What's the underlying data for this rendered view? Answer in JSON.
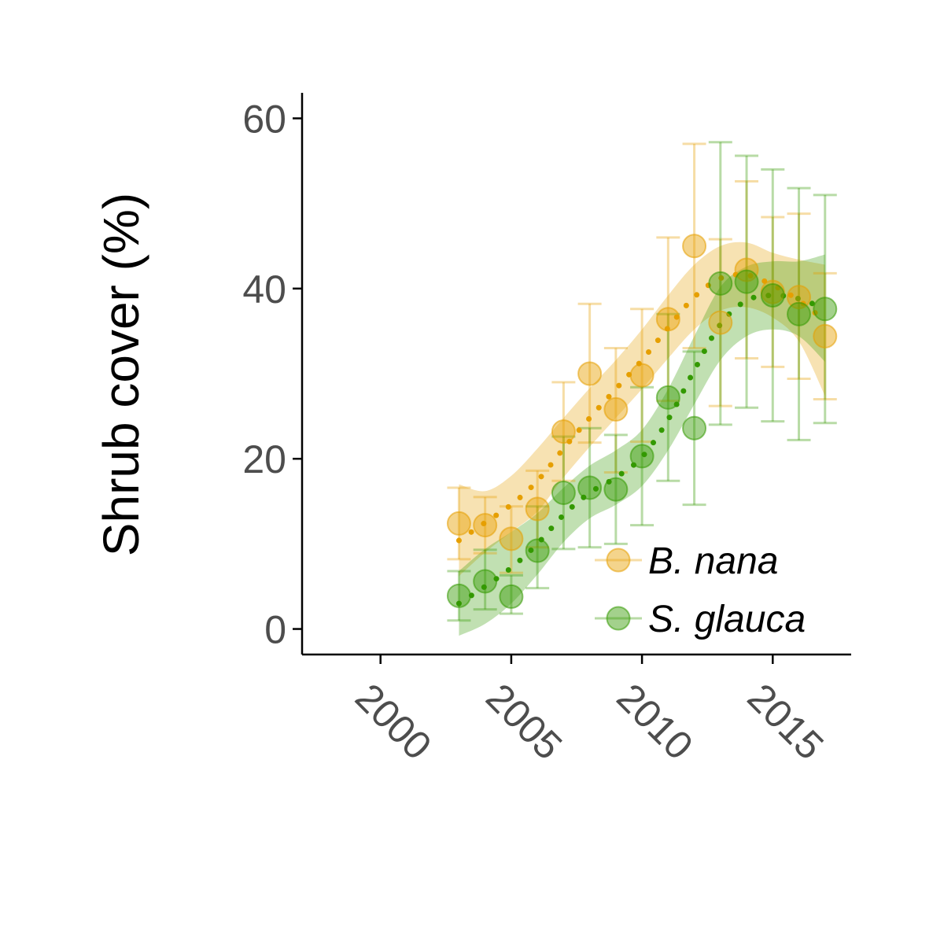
{
  "chart_data": {
    "type": "scatter",
    "title": "",
    "xlabel": "",
    "ylabel": "Shrub cover (%)",
    "xlim": [
      1997,
      2018
    ],
    "ylim": [
      -3,
      63
    ],
    "xticks": [
      2000,
      2005,
      2010,
      2015
    ],
    "yticks": [
      0,
      20,
      40,
      60
    ],
    "xtick_labels": [
      "2000",
      "2005",
      "2010",
      "2015"
    ],
    "ytick_labels": [
      "0",
      "20",
      "40",
      "60"
    ],
    "grid": false,
    "legend_position": "bottom-right",
    "series": [
      {
        "name": "B. nana",
        "color": "#E69F00",
        "points": [
          {
            "x": 2003,
            "y": 12.4,
            "lo": 8.2,
            "hi": 16.6
          },
          {
            "x": 2004,
            "y": 12.2,
            "lo": 8.9,
            "hi": 15.5
          },
          {
            "x": 2005,
            "y": 10.6,
            "lo": 6.6,
            "hi": 14.4
          },
          {
            "x": 2006,
            "y": 14.1,
            "lo": 9.6,
            "hi": 18.6
          },
          {
            "x": 2007,
            "y": 23.2,
            "lo": 17.4,
            "hi": 29.0
          },
          {
            "x": 2008,
            "y": 30.0,
            "lo": 21.9,
            "hi": 38.2
          },
          {
            "x": 2009,
            "y": 25.8,
            "lo": 18.4,
            "hi": 33.0
          },
          {
            "x": 2010,
            "y": 29.8,
            "lo": 22.0,
            "hi": 37.6
          },
          {
            "x": 2011,
            "y": 36.4,
            "lo": 26.8,
            "hi": 46.0
          },
          {
            "x": 2012,
            "y": 45.0,
            "lo": 33.0,
            "hi": 57.0
          },
          {
            "x": 2013,
            "y": 36.0,
            "lo": 26.2,
            "hi": 45.8
          },
          {
            "x": 2014,
            "y": 42.2,
            "lo": 31.8,
            "hi": 52.6
          },
          {
            "x": 2015,
            "y": 39.6,
            "lo": 30.8,
            "hi": 48.4
          },
          {
            "x": 2016,
            "y": 39.0,
            "lo": 29.4,
            "hi": 48.8
          },
          {
            "x": 2017,
            "y": 34.4,
            "lo": 27.0,
            "hi": 41.8
          }
        ],
        "trend": [
          {
            "x": 2003,
            "y": 10.4,
            "lo": 6.2,
            "hi": 17.0
          },
          {
            "x": 2004,
            "y": 12.5,
            "lo": 9.0,
            "hi": 16.2
          },
          {
            "x": 2005,
            "y": 14.6,
            "lo": 11.4,
            "hi": 18.0
          },
          {
            "x": 2006,
            "y": 17.4,
            "lo": 13.8,
            "hi": 21.2
          },
          {
            "x": 2007,
            "y": 21.2,
            "lo": 17.8,
            "hi": 24.8
          },
          {
            "x": 2008,
            "y": 24.8,
            "lo": 21.4,
            "hi": 28.3
          },
          {
            "x": 2009,
            "y": 28.2,
            "lo": 24.8,
            "hi": 31.6
          },
          {
            "x": 2010,
            "y": 31.6,
            "lo": 28.2,
            "hi": 35.2
          },
          {
            "x": 2011,
            "y": 35.4,
            "lo": 31.8,
            "hi": 39.2
          },
          {
            "x": 2012,
            "y": 39.0,
            "lo": 35.2,
            "hi": 42.8
          },
          {
            "x": 2013,
            "y": 41.2,
            "lo": 37.4,
            "hi": 45.0
          },
          {
            "x": 2014,
            "y": 41.6,
            "lo": 37.8,
            "hi": 45.4
          },
          {
            "x": 2015,
            "y": 40.4,
            "lo": 36.6,
            "hi": 44.2
          },
          {
            "x": 2016,
            "y": 38.6,
            "lo": 33.8,
            "hi": 43.4
          },
          {
            "x": 2017,
            "y": 36.2,
            "lo": 27.4,
            "hi": 42.8
          }
        ]
      },
      {
        "name": "S. glauca",
        "color": "#339900",
        "points": [
          {
            "x": 2003,
            "y": 3.9,
            "lo": 1.0,
            "hi": 6.8
          },
          {
            "x": 2004,
            "y": 5.6,
            "lo": 2.3,
            "hi": 9.3
          },
          {
            "x": 2005,
            "y": 3.8,
            "lo": 1.8,
            "hi": 6.3
          },
          {
            "x": 2006,
            "y": 9.2,
            "lo": 4.8,
            "hi": 14.4
          },
          {
            "x": 2007,
            "y": 16.0,
            "lo": 9.4,
            "hi": 22.6
          },
          {
            "x": 2008,
            "y": 16.6,
            "lo": 9.6,
            "hi": 23.6
          },
          {
            "x": 2009,
            "y": 16.4,
            "lo": 10.0,
            "hi": 22.8
          },
          {
            "x": 2010,
            "y": 20.3,
            "lo": 12.2,
            "hi": 28.4
          },
          {
            "x": 2011,
            "y": 27.2,
            "lo": 17.4,
            "hi": 37.0
          },
          {
            "x": 2012,
            "y": 23.6,
            "lo": 14.6,
            "hi": 32.6
          },
          {
            "x": 2013,
            "y": 40.6,
            "lo": 24.0,
            "hi": 57.2
          },
          {
            "x": 2014,
            "y": 40.8,
            "lo": 26.0,
            "hi": 55.6
          },
          {
            "x": 2015,
            "y": 39.2,
            "lo": 24.4,
            "hi": 54.0
          },
          {
            "x": 2016,
            "y": 37.0,
            "lo": 22.2,
            "hi": 51.8
          },
          {
            "x": 2017,
            "y": 37.6,
            "lo": 24.2,
            "hi": 51.0
          }
        ],
        "trend": [
          {
            "x": 2003,
            "y": 3.0,
            "lo": -0.8,
            "hi": 6.8
          },
          {
            "x": 2004,
            "y": 5.0,
            "lo": 0.6,
            "hi": 9.4
          },
          {
            "x": 2005,
            "y": 7.2,
            "lo": 3.0,
            "hi": 11.4
          },
          {
            "x": 2006,
            "y": 10.0,
            "lo": 6.4,
            "hi": 13.6
          },
          {
            "x": 2007,
            "y": 13.4,
            "lo": 10.2,
            "hi": 16.6
          },
          {
            "x": 2008,
            "y": 16.0,
            "lo": 13.0,
            "hi": 19.2
          },
          {
            "x": 2009,
            "y": 17.8,
            "lo": 14.6,
            "hi": 21.0
          },
          {
            "x": 2010,
            "y": 20.2,
            "lo": 16.8,
            "hi": 23.4
          },
          {
            "x": 2011,
            "y": 24.6,
            "lo": 21.0,
            "hi": 28.2
          },
          {
            "x": 2012,
            "y": 30.4,
            "lo": 26.4,
            "hi": 34.4
          },
          {
            "x": 2013,
            "y": 35.8,
            "lo": 31.6,
            "hi": 40.2
          },
          {
            "x": 2014,
            "y": 38.6,
            "lo": 34.4,
            "hi": 42.6
          },
          {
            "x": 2015,
            "y": 39.2,
            "lo": 35.2,
            "hi": 43.2
          },
          {
            "x": 2016,
            "y": 38.8,
            "lo": 34.4,
            "hi": 43.2
          },
          {
            "x": 2017,
            "y": 37.6,
            "lo": 31.4,
            "hi": 44.0
          }
        ]
      }
    ]
  }
}
